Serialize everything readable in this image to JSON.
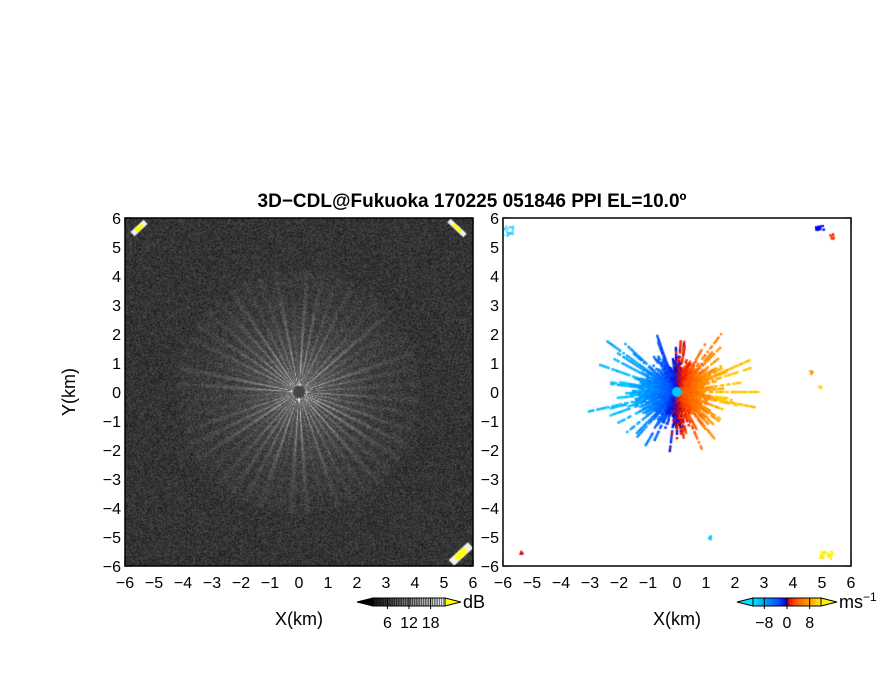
{
  "figure": {
    "title": "3D−CDL@Fukuoka 170225 051846 PPI EL=10.0º"
  },
  "chart_data": [
    {
      "type": "heatmap",
      "panel": "left",
      "quantity": "signal-to-noise ratio",
      "title": "",
      "xlabel": "X(km)",
      "ylabel": "Y(km)",
      "xlim": [
        -6,
        6
      ],
      "ylim": [
        -6,
        6
      ],
      "x_ticks": [
        -6,
        -5,
        -4,
        -3,
        -2,
        -1,
        0,
        1,
        2,
        3,
        4,
        5,
        6
      ],
      "y_ticks": [
        -6,
        -5,
        -4,
        -3,
        -2,
        -1,
        0,
        1,
        2,
        3,
        4,
        5,
        6
      ],
      "colorbar": {
        "unit": "dB",
        "tick_values": [
          6,
          12,
          18
        ],
        "tick_labels": [
          "6",
          "12",
          "18"
        ],
        "range": [
          2,
          22
        ],
        "colors": [
          "#000000",
          "#ffffff",
          "#ffff00"
        ]
      },
      "description_values": {
        "background_level_db": 4,
        "center_blank_radius_km": 0.2,
        "corner_echoes": [
          "top-left",
          "top-right",
          "bottom-right"
        ]
      }
    },
    {
      "type": "heatmap",
      "panel": "right",
      "quantity": "radial velocity",
      "title": "",
      "xlabel": "X(km)",
      "ylabel": "",
      "xlim": [
        -6,
        6
      ],
      "ylim": [
        -6,
        6
      ],
      "x_ticks": [
        -6,
        -5,
        -4,
        -3,
        -2,
        -1,
        0,
        1,
        2,
        3,
        4,
        5,
        6
      ],
      "y_ticks": [
        -6,
        -5,
        -4,
        -3,
        -2,
        -1,
        0,
        1,
        2,
        3,
        4,
        5,
        6
      ],
      "colorbar": {
        "unit": "ms",
        "unit_exponent": "−1",
        "tick_values": [
          -8,
          0,
          8
        ],
        "tick_labels": [
          "−8",
          "0",
          "8"
        ],
        "range": [
          -12,
          12
        ],
        "colors": [
          "#00ffff",
          "#0080ff",
          "#0000ff",
          "#ff0000",
          "#ff8000",
          "#ffff00"
        ]
      },
      "description_values": {
        "negative_velocity_side": "west",
        "positive_velocity_side": "east",
        "max_echo_range_km": 3.5
      }
    }
  ],
  "colors": {
    "background": "#ffffff",
    "axes": "#000000"
  }
}
